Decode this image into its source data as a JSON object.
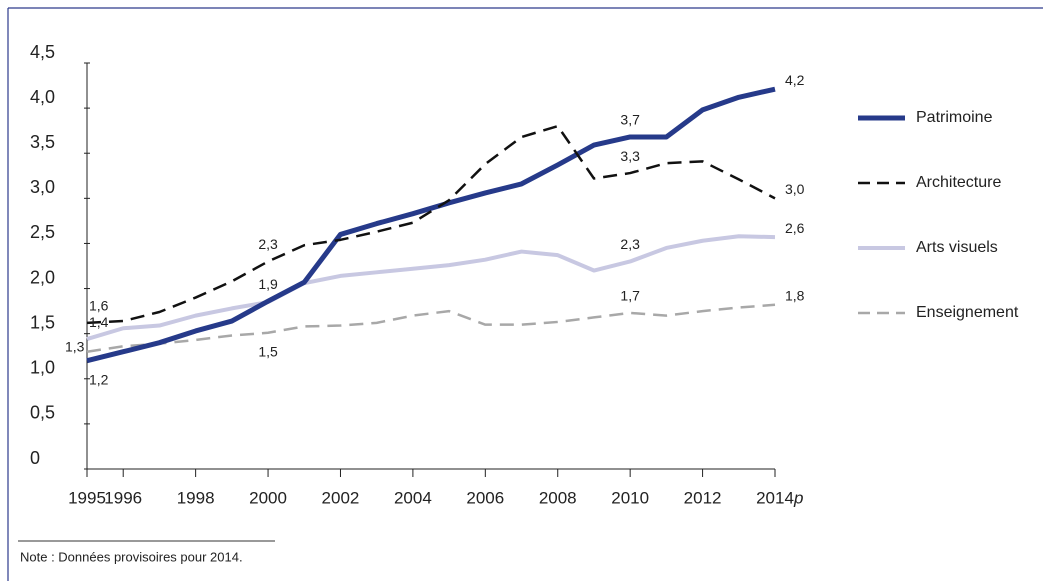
{
  "chart_data": {
    "type": "line",
    "x": [
      1995,
      1996,
      1997,
      1998,
      1999,
      2000,
      2001,
      2002,
      2003,
      2004,
      2005,
      2006,
      2007,
      2008,
      2009,
      2010,
      2011,
      2012,
      2013,
      2014
    ],
    "series": [
      {
        "name": "Patrimoine",
        "color": "#263a8a",
        "width": 5,
        "dashed": false,
        "values": [
          1.2,
          1.3,
          1.4,
          1.53,
          1.64,
          1.86,
          2.07,
          2.6,
          2.72,
          2.83,
          2.95,
          3.06,
          3.16,
          3.37,
          3.59,
          3.68,
          3.68,
          3.98,
          4.12,
          4.21
        ],
        "value_labels": [
          "1,2",
          null,
          null,
          null,
          null,
          "1,9",
          null,
          null,
          null,
          null,
          null,
          null,
          null,
          null,
          null,
          "3,7",
          null,
          null,
          null,
          "4,2"
        ]
      },
      {
        "name": "Architecture",
        "color": "#111111",
        "width": 2.5,
        "dashed": true,
        "values": [
          1.62,
          1.64,
          1.74,
          1.9,
          2.08,
          2.3,
          2.48,
          2.54,
          2.63,
          2.73,
          2.98,
          3.38,
          3.68,
          3.8,
          3.22,
          3.28,
          3.39,
          3.41,
          3.21,
          3.0
        ],
        "value_labels": [
          "1,6",
          null,
          null,
          null,
          null,
          "2,3",
          null,
          null,
          null,
          null,
          null,
          null,
          null,
          null,
          null,
          "3,3",
          null,
          null,
          null,
          "3,0"
        ]
      },
      {
        "name": "Arts visuels",
        "color": "#c8c8e2",
        "width": 4,
        "dashed": false,
        "values": [
          1.44,
          1.56,
          1.59,
          1.7,
          1.78,
          1.85,
          2.06,
          2.14,
          2.18,
          2.22,
          2.26,
          2.32,
          2.41,
          2.37,
          2.2,
          2.3,
          2.45,
          2.53,
          2.58,
          2.57
        ],
        "value_labels": [
          "1,4",
          null,
          null,
          null,
          null,
          null,
          null,
          null,
          null,
          null,
          null,
          null,
          null,
          null,
          null,
          "2,3",
          null,
          null,
          null,
          "2,6"
        ]
      },
      {
        "name": "Enseignement",
        "color": "#a8a8a8",
        "width": 2.5,
        "dashed": true,
        "values": [
          1.3,
          1.36,
          1.39,
          1.43,
          1.48,
          1.51,
          1.58,
          1.59,
          1.62,
          1.7,
          1.75,
          1.6,
          1.6,
          1.63,
          1.68,
          1.73,
          1.7,
          1.75,
          1.79,
          1.82
        ],
        "value_labels": [
          "1,3",
          null,
          null,
          null,
          null,
          "1,5",
          null,
          null,
          null,
          null,
          null,
          null,
          null,
          null,
          null,
          "1,7",
          null,
          null,
          null,
          "1,8"
        ]
      }
    ],
    "xlim": [
      1995,
      2014
    ],
    "xticks": [
      1995,
      1996,
      1998,
      2000,
      2002,
      2004,
      2006,
      2008,
      2010,
      2012,
      2014
    ],
    "x_suffix": "p",
    "ylim": [
      0,
      4.5
    ],
    "yticks": [
      0,
      {
        "value": 0.5,
        "label": "0,5"
      },
      {
        "value": 1,
        "label": "1,0"
      },
      {
        "value": 1.5,
        "label": "1,5"
      },
      {
        "value": 2,
        "label": "2,0"
      },
      {
        "value": 2.5,
        "label": "2,5"
      },
      {
        "value": 3,
        "label": "3,0"
      },
      {
        "value": 3.5,
        "label": "3,5"
      },
      {
        "value": 4,
        "label": "4,0"
      },
      {
        "value": 4.5,
        "label": "4,5"
      }
    ],
    "legend": "right",
    "note": "Note : Données provisoires pour 2014."
  }
}
